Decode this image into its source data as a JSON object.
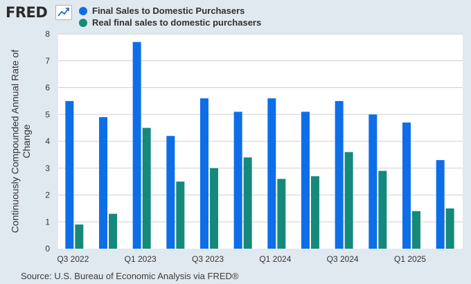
{
  "brand": {
    "logo_text": "FRED"
  },
  "legend": [
    {
      "label": "Final Sales to Domestic Purchasers",
      "color": "#0d6ee8"
    },
    {
      "label": "Real final sales to domestic purchasers",
      "color": "#168a7a"
    }
  ],
  "source": "Source: U.S. Bureau of Economic Analysis via FRED®",
  "chart_data": {
    "type": "bar",
    "title": "",
    "xlabel": "",
    "ylabel": "Continuously Compounded Annual Rate of Change",
    "ylim": [
      0,
      8
    ],
    "yticks": [
      0,
      1,
      2,
      3,
      4,
      5,
      6,
      7,
      8
    ],
    "grid": true,
    "categories": [
      "Q3 2022",
      "Q4 2022",
      "Q1 2023",
      "Q2 2023",
      "Q3 2023",
      "Q4 2023",
      "Q1 2024",
      "Q2 2024",
      "Q3 2024",
      "Q4 2024",
      "Q1 2025",
      "Q2 2025"
    ],
    "tick_labels": [
      "Q3 2022",
      "",
      "Q1 2023",
      "",
      "Q3 2023",
      "",
      "Q1 2024",
      "",
      "Q3 2024",
      "",
      "Q1 2025",
      ""
    ],
    "series": [
      {
        "name": "Final Sales to Domestic Purchasers",
        "color": "#0d6ee8",
        "values": [
          5.5,
          4.9,
          7.7,
          4.2,
          5.6,
          5.1,
          5.6,
          5.1,
          5.5,
          5.0,
          4.7,
          3.3
        ]
      },
      {
        "name": "Real final sales to domestic purchasers",
        "color": "#168a7a",
        "values": [
          0.9,
          1.3,
          4.5,
          2.5,
          3.0,
          3.4,
          2.6,
          2.7,
          3.6,
          2.9,
          1.4,
          1.5
        ]
      }
    ]
  }
}
